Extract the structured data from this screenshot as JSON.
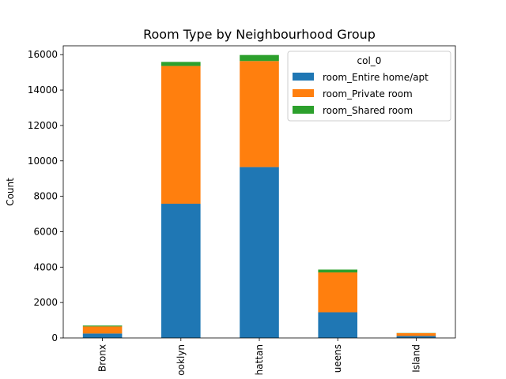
{
  "chart_data": {
    "type": "bar",
    "stacked": true,
    "title": "Room Type by Neighbourhood Group",
    "xlabel": "",
    "ylabel": "Count",
    "ylim": [
      0,
      16500
    ],
    "yticks": [
      0,
      2000,
      4000,
      6000,
      8000,
      10000,
      12000,
      14000,
      16000
    ],
    "ytick_labels": [
      "0",
      "2000",
      "4000",
      "6000",
      "8000",
      "10000",
      "12000",
      "14000",
      "16000"
    ],
    "categories": [
      "Bronx",
      "ooklyn",
      "hattan",
      "ueens",
      "Island"
    ],
    "series": [
      {
        "name": "room_Entire home/apt",
        "color": "#1f77b4",
        "values": [
          250,
          7580,
          9650,
          1450,
          110
        ]
      },
      {
        "name": "room_Private room",
        "color": "#ff7f0e",
        "values": [
          400,
          7780,
          5990,
          2250,
          160
        ]
      },
      {
        "name": "room_Shared room",
        "color": "#2ca02c",
        "values": [
          50,
          230,
          340,
          160,
          10
        ]
      }
    ],
    "legend": {
      "title": "col_0",
      "position": "top-right"
    },
    "grid": false
  }
}
